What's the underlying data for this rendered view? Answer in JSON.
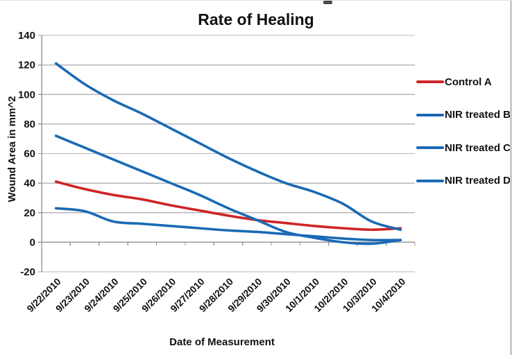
{
  "chart_data": {
    "type": "line",
    "title": "Rate of Healing",
    "xlabel": "Date of Measurement",
    "ylabel": "Wound Area in mm^2",
    "categories": [
      "9/22/2010",
      "9/23/2010",
      "9/24/2010",
      "9/25/2010",
      "9/26/2010",
      "9/27/2010",
      "9/28/2010",
      "9/29/2010",
      "9/30/2010",
      "10/1/2010",
      "10/2/2010",
      "10/3/2010",
      "10/4/2010"
    ],
    "series": [
      {
        "name": "Control A",
        "color": "#ce2526",
        "values": [
          41,
          36,
          32,
          29,
          25,
          21.5,
          18,
          15,
          13,
          11,
          9.5,
          8.5,
          9.5
        ]
      },
      {
        "name": "NIR treated B",
        "color": "#1a6ab5",
        "values": [
          72,
          64,
          56,
          48,
          40,
          32,
          23,
          15,
          7,
          3,
          0,
          -1,
          1.5
        ]
      },
      {
        "name": "NIR treated C",
        "color": "#1a6ab5",
        "values": [
          23,
          21,
          14,
          12.5,
          11,
          9.5,
          8,
          7,
          5.5,
          4,
          2.5,
          1.5,
          1.5
        ]
      },
      {
        "name": "NIR treated D",
        "color": "#1a6ab5",
        "values": [
          121,
          107,
          96,
          87,
          77,
          67,
          57,
          48,
          40,
          34,
          26,
          14,
          8.5
        ]
      }
    ],
    "ylim": [
      -20,
      140
    ],
    "ytick_step": 20,
    "grid": true,
    "legend_position": "right",
    "line_smoothing": true,
    "axis_color": "#9b9b9b",
    "gridline_color": "#b7b7b7",
    "text_color": "#111111"
  }
}
